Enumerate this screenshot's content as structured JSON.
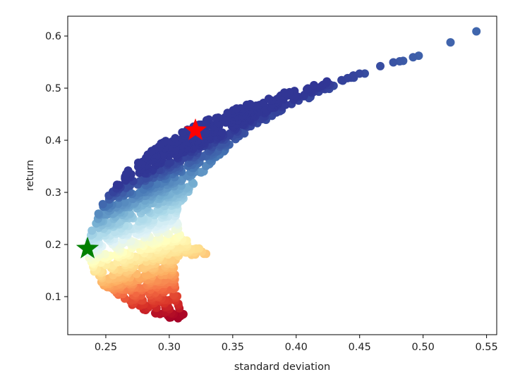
{
  "chart_data": {
    "type": "scatter",
    "title": "",
    "xlabel": "standard deviation",
    "ylabel": "return",
    "xlim": [
      0.22,
      0.558
    ],
    "ylim": [
      0.027,
      0.638
    ],
    "xticks": [
      0.25,
      0.3,
      0.35,
      0.4,
      0.45,
      0.5,
      0.55
    ],
    "xtick_labels": [
      "0.25",
      "0.30",
      "0.35",
      "0.40",
      "0.45",
      "0.50",
      "0.55"
    ],
    "yticks": [
      0.1,
      0.2,
      0.3,
      0.4,
      0.5,
      0.6
    ],
    "ytick_labels": [
      "0.1",
      "0.2",
      "0.3",
      "0.4",
      "0.5",
      "0.6"
    ],
    "grid": false,
    "legend": null,
    "colormap": "RdYlBu (colored by return/volatility ratio)",
    "series": [
      {
        "name": "simulated portfolios",
        "kind": "scatter-cloud",
        "efficient_frontier_upper": [
          [
            0.235,
            0.19
          ],
          [
            0.24,
            0.245
          ],
          [
            0.25,
            0.29
          ],
          [
            0.26,
            0.322
          ],
          [
            0.27,
            0.35
          ],
          [
            0.28,
            0.372
          ],
          [
            0.29,
            0.39
          ],
          [
            0.3,
            0.403
          ],
          [
            0.32,
            0.428
          ],
          [
            0.34,
            0.45
          ],
          [
            0.36,
            0.468
          ],
          [
            0.38,
            0.484
          ],
          [
            0.4,
            0.498
          ],
          [
            0.42,
            0.511
          ],
          [
            0.44,
            0.524
          ],
          [
            0.46,
            0.538
          ],
          [
            0.48,
            0.552
          ],
          [
            0.5,
            0.566
          ],
          [
            0.52,
            0.583
          ],
          [
            0.53,
            0.598
          ]
        ],
        "inner_boundary": [
          [
            0.53,
            0.598
          ],
          [
            0.51,
            0.574
          ],
          [
            0.49,
            0.556
          ],
          [
            0.47,
            0.541
          ],
          [
            0.45,
            0.522
          ],
          [
            0.43,
            0.503
          ],
          [
            0.41,
            0.48
          ],
          [
            0.39,
            0.458
          ],
          [
            0.37,
            0.43
          ],
          [
            0.35,
            0.395
          ],
          [
            0.335,
            0.36
          ],
          [
            0.32,
            0.32
          ],
          [
            0.31,
            0.28
          ],
          [
            0.305,
            0.25
          ],
          [
            0.31,
            0.215
          ],
          [
            0.33,
            0.182
          ],
          [
            0.305,
            0.17
          ],
          [
            0.305,
            0.135
          ],
          [
            0.305,
            0.115
          ],
          [
            0.31,
            0.08
          ],
          [
            0.315,
            0.052
          ]
        ],
        "lower_boundary": [
          [
            0.315,
            0.052
          ],
          [
            0.3,
            0.058
          ],
          [
            0.285,
            0.07
          ],
          [
            0.27,
            0.085
          ],
          [
            0.255,
            0.105
          ],
          [
            0.245,
            0.13
          ],
          [
            0.238,
            0.16
          ],
          [
            0.235,
            0.19
          ]
        ],
        "outliers": [
          [
            0.542,
            0.609
          ],
          [
            0.329,
            0.182
          ]
        ]
      },
      {
        "name": "max Sharpe portfolio",
        "kind": "marker",
        "marker": "star",
        "color": "#ff0000",
        "x": 0.3206,
        "y": 0.419
      },
      {
        "name": "min volatility portfolio",
        "kind": "marker",
        "marker": "star",
        "color": "#008000",
        "x": 0.2356,
        "y": 0.192
      }
    ]
  },
  "plot": {
    "colors": {
      "red_star": "#ff0000",
      "green_star": "#008000",
      "cmap_low": "#a50026",
      "cmap_mid": "#ffffbf",
      "cmap_high": "#313695"
    }
  }
}
